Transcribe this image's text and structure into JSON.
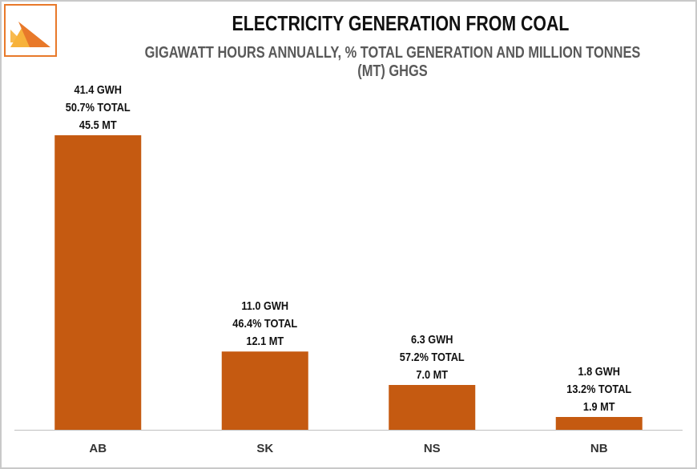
{
  "header": {
    "title": "ELECTRICITY GENERATION FROM COAL",
    "subtitle": "GIGAWATT HOURS ANNUALLY, % TOTAL GENERATION AND MILLION TONNES (MT) GHGS"
  },
  "logo": {
    "icon": "triangles-logo-icon",
    "colors": [
      "#f7b23b",
      "#e8792a"
    ]
  },
  "chart_data": {
    "type": "bar",
    "categories": [
      "AB",
      "SK",
      "NS",
      "NB"
    ],
    "values": [
      41.4,
      11.0,
      6.3,
      1.8
    ],
    "data_labels": [
      [
        "41.4 GWH",
        "50.7% TOTAL",
        "45.5 MT"
      ],
      [
        "11.0 GWH",
        "46.4% TOTAL",
        "12.1 MT"
      ],
      [
        "6.3 GWH",
        "57.2% TOTAL",
        "7.0 MT"
      ],
      [
        "1.8 GWH",
        "13.2% TOTAL",
        "1.9 MT"
      ]
    ],
    "title": "ELECTRICITY GENERATION FROM COAL",
    "subtitle": "GIGAWATT HOURS ANNUALLY, % TOTAL GENERATION AND MILLION TONNES (MT) GHGS",
    "xlabel": "",
    "ylabel": "",
    "ylim": [
      0,
      41.4
    ],
    "grid": false,
    "legend": "none",
    "bar_color": "#c55a11"
  }
}
